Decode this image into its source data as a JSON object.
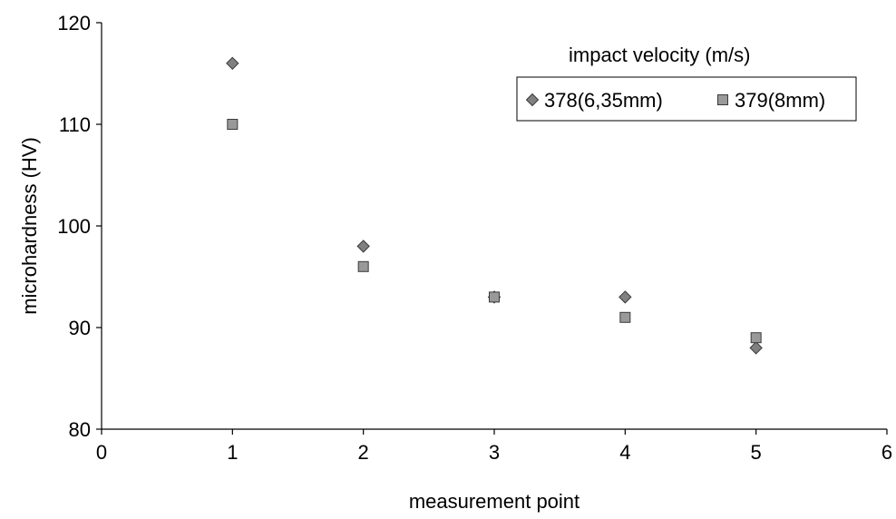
{
  "chart_data": {
    "type": "scatter",
    "xlabel": "measurement point",
    "ylabel": "microhardness (HV)",
    "xlim": [
      0,
      6
    ],
    "ylim": [
      80,
      120
    ],
    "xticks": [
      0,
      1,
      2,
      3,
      4,
      5,
      6
    ],
    "yticks": [
      80,
      90,
      100,
      110,
      120
    ],
    "grid": false,
    "legend": {
      "title": "impact velocity   (m/s)",
      "placement": "top-right"
    },
    "series": [
      {
        "name": "378(6,35mm)",
        "marker": "diamond",
        "color": "#808080",
        "x": [
          1,
          2,
          3,
          4,
          5
        ],
        "y": [
          116,
          98,
          93,
          93,
          88
        ]
      },
      {
        "name": "379(8mm)",
        "marker": "square",
        "color": "#999999",
        "x": [
          1,
          2,
          3,
          4,
          5
        ],
        "y": [
          110,
          96,
          93,
          91,
          89
        ]
      }
    ]
  }
}
